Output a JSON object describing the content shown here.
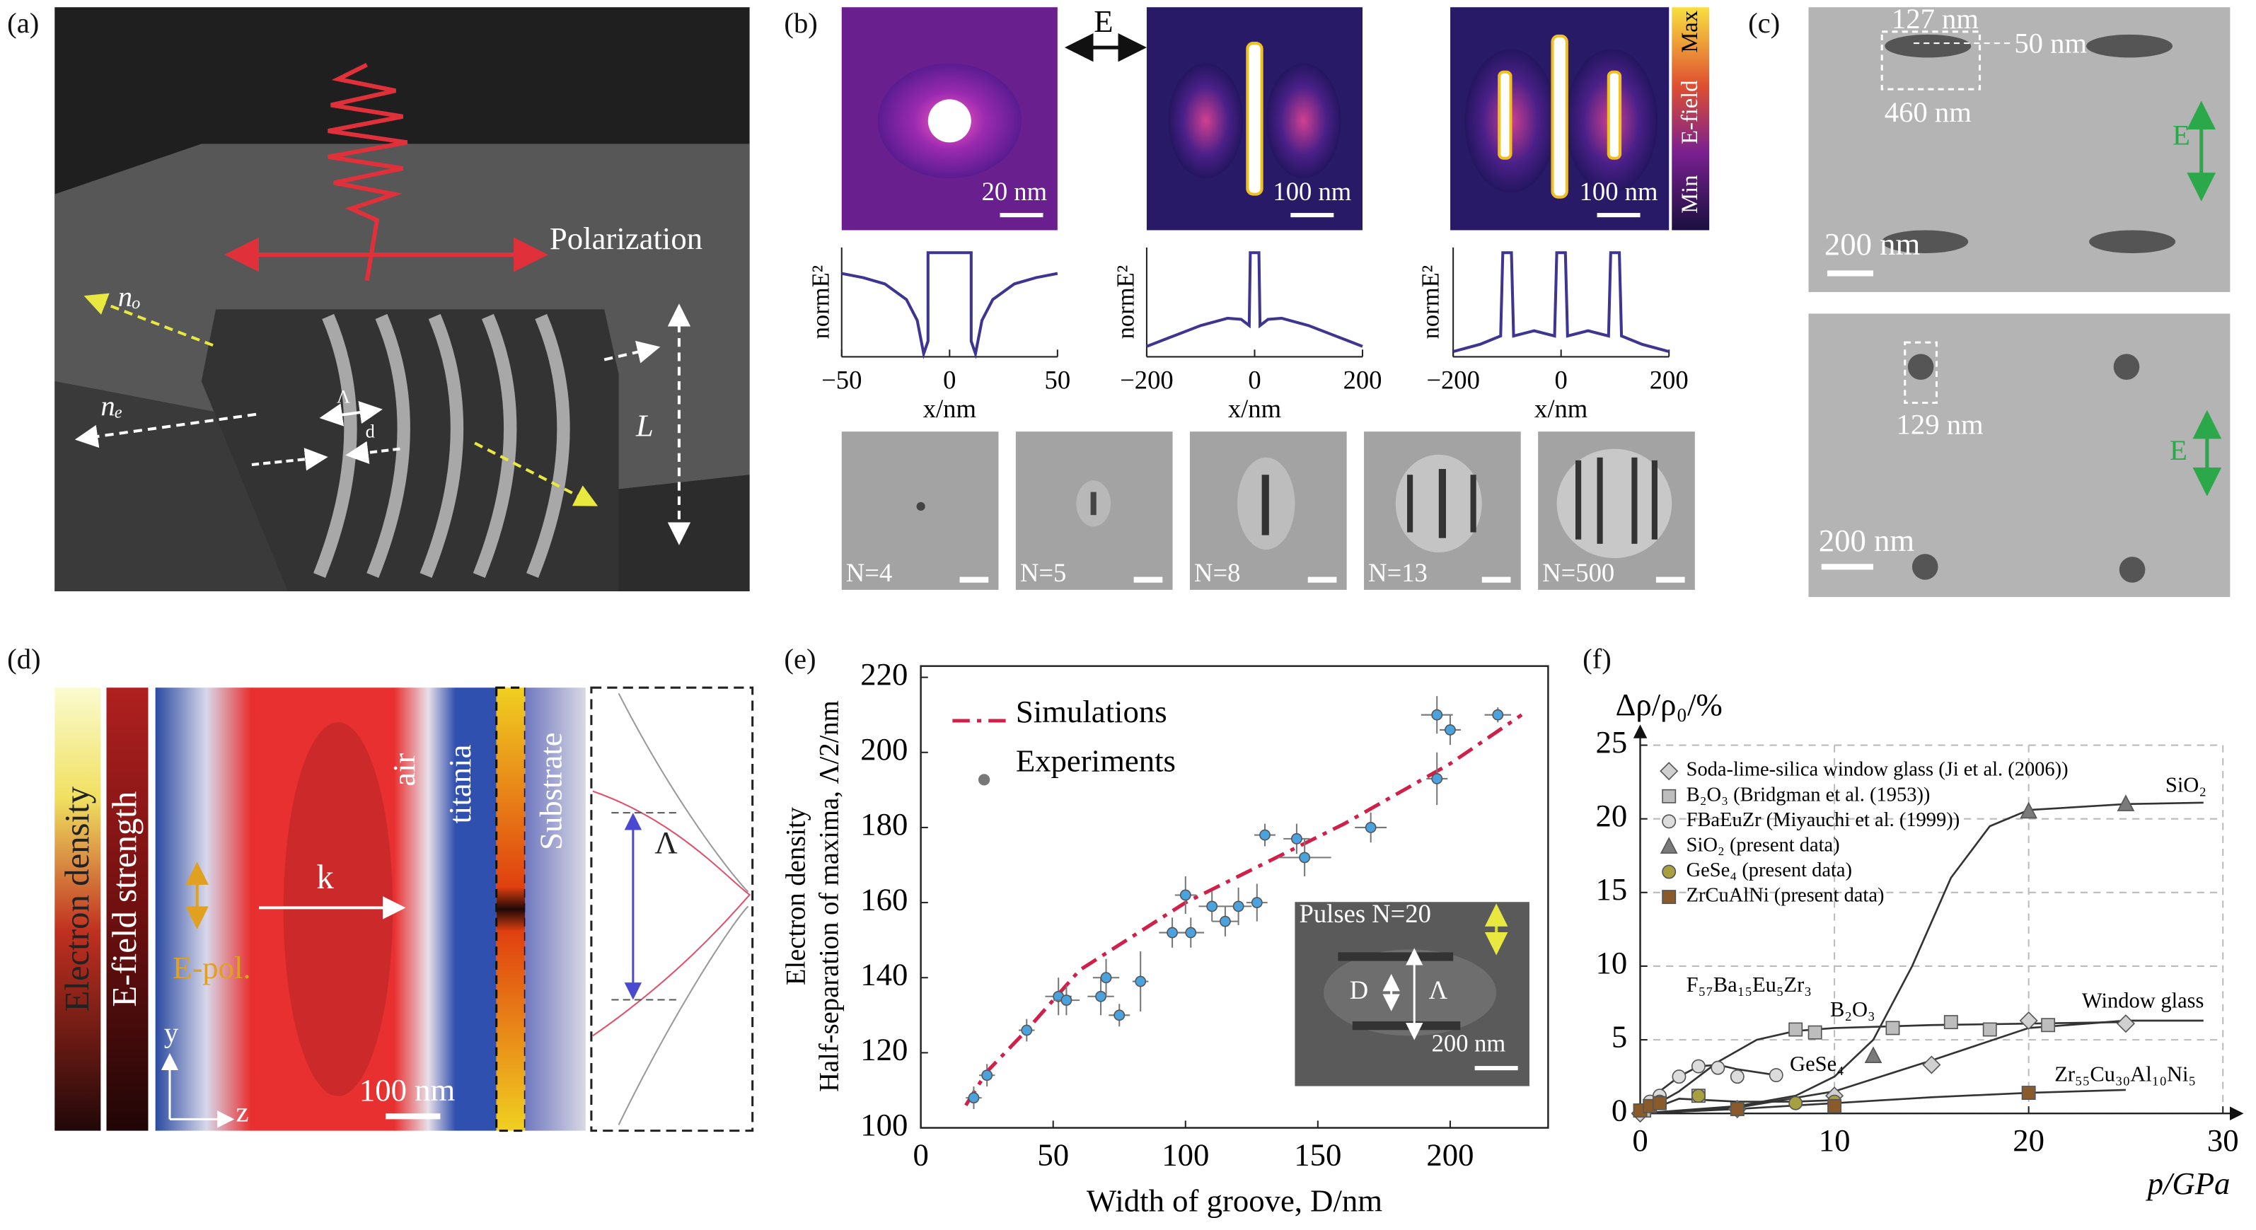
{
  "figure": {
    "a": {
      "label": "(a)",
      "polarization": "Polarization",
      "n_o": "nₒ",
      "n_e": "nₑ",
      "period": "Λ",
      "d": "d",
      "L": "L"
    },
    "b": {
      "label": "(b)",
      "E": "E",
      "scales": [
        "20 nm",
        "100 nm",
        "100 nm"
      ],
      "colorbar": [
        "Min",
        "E-field",
        "Max"
      ],
      "sem": [
        "N=4",
        "N=5",
        "N=8",
        "N=13",
        "N=500"
      ]
    },
    "c": {
      "label": "(c)",
      "top": {
        "width": "127 nm",
        "gap": "50 nm",
        "length": "460 nm",
        "E": "E",
        "scale": "200 nm"
      },
      "bottom": {
        "width": "129 nm",
        "E": "E",
        "scale": "200 nm"
      }
    },
    "d": {
      "label": "(d)",
      "electron_density": "Electron density",
      "efield": "E-field strength",
      "epol": "E-pol.",
      "k": "k",
      "air": "air",
      "titania": "titania",
      "substrate": "Substrate",
      "scale": "100 nm",
      "y": "y",
      "z": "z",
      "period": "Λ"
    },
    "e": {
      "label": "(e)",
      "inset": {
        "title": "Pulses N=20",
        "D": "D",
        "period": "Λ",
        "scale": "200 nm"
      }
    },
    "f": {
      "label": "(f)"
    }
  },
  "chart_data": [
    {
      "type": "line",
      "xlabel": "x/nm",
      "ylabel": "normE²",
      "x": [
        -50,
        -40,
        -30,
        -20,
        -15,
        -12,
        -10,
        -10,
        10,
        10,
        12,
        15,
        20,
        30,
        40,
        50
      ],
      "series": [
        {
          "color": "#3d3590",
          "values": [
            0.8,
            0.76,
            0.7,
            0.55,
            0.35,
            0.03,
            0.15,
            1,
            1,
            0.15,
            0.03,
            0.35,
            0.55,
            0.7,
            0.76,
            0.8
          ]
        }
      ],
      "xlim": [
        -50,
        50
      ],
      "xticks": [
        {
          "value": -50,
          "label": "−50"
        },
        0,
        50
      ],
      "ylim": [
        0,
        1.05
      ]
    },
    {
      "type": "line",
      "xlabel": "x/nm",
      "ylabel": "normE²",
      "x": [
        -200,
        -150,
        -100,
        -50,
        -25,
        -10,
        -8,
        8,
        10,
        25,
        50,
        100,
        150,
        200
      ],
      "series": [
        {
          "color": "#3d3590",
          "values": [
            0.1,
            0.2,
            0.3,
            0.37,
            0.36,
            0.3,
            1,
            1,
            0.3,
            0.36,
            0.37,
            0.3,
            0.2,
            0.1
          ]
        }
      ],
      "xlim": [
        -200,
        200
      ],
      "xticks": [
        {
          "value": -200,
          "label": "−200"
        },
        0,
        200
      ],
      "ylim": [
        0,
        1.05
      ]
    },
    {
      "type": "line",
      "xlabel": "x/nm",
      "ylabel": "normE²",
      "x": [
        -200,
        -150,
        -112,
        -108,
        -92,
        -88,
        -50,
        -12,
        -8,
        8,
        12,
        50,
        88,
        92,
        108,
        112,
        150,
        200
      ],
      "series": [
        {
          "color": "#3d3590",
          "values": [
            0.05,
            0.12,
            0.2,
            1,
            1,
            0.2,
            0.25,
            0.2,
            1,
            1,
            0.2,
            0.25,
            0.2,
            1,
            1,
            0.2,
            0.12,
            0.05
          ]
        }
      ],
      "xlim": [
        -200,
        200
      ],
      "xticks": [
        {
          "value": -200,
          "label": "−200"
        },
        0,
        200
      ],
      "ylim": [
        0,
        1.05
      ]
    },
    {
      "type": "scatter",
      "xlabel": "Width of groove, D/nm",
      "ylabel": [
        "Electron density",
        "Half-separation of maxima, Λ/2/nm"
      ],
      "xlim": [
        0,
        237
      ],
      "xticks": [
        0,
        50,
        100,
        150,
        200
      ],
      "ylim": [
        100,
        223
      ],
      "yticks": [
        100,
        120,
        140,
        160,
        180,
        200,
        220
      ],
      "series": [
        {
          "name": "Simulations",
          "type": "line",
          "dash": "dashdot",
          "color": "#d0204a",
          "x": [
            17,
            25,
            40,
            50,
            60,
            80,
            100,
            120,
            140,
            160,
            180,
            200,
            227
          ],
          "values": [
            106,
            115,
            126,
            134,
            142,
            151,
            160,
            167,
            174,
            181,
            189,
            197,
            210
          ]
        },
        {
          "name": "Experiments",
          "color": "#4aa3df",
          "x": [
            20,
            25,
            40,
            52,
            55,
            68,
            70,
            75,
            83,
            95,
            100,
            102,
            110,
            115,
            120,
            127,
            130,
            142,
            145,
            170,
            195,
            195,
            200,
            218
          ],
          "values": [
            108,
            114,
            126,
            135,
            134,
            135,
            140,
            130,
            139,
            152,
            162,
            152,
            159,
            155,
            159,
            160,
            178,
            177,
            172,
            180,
            193,
            210,
            206,
            210
          ],
          "yerr": [
            3,
            3,
            3,
            5,
            4,
            5,
            5,
            3,
            8,
            4,
            5,
            4,
            4,
            4,
            5,
            5,
            3,
            4,
            5,
            4,
            7,
            5,
            4,
            2
          ],
          "xerr": [
            3,
            3,
            3,
            5,
            5,
            5,
            5,
            4,
            3,
            5,
            4,
            5,
            5,
            5,
            5,
            4,
            4,
            5,
            10,
            6,
            4,
            6,
            4,
            5
          ]
        }
      ]
    },
    {
      "type": "scatter",
      "xlabel": "p/GPa",
      "ylabel": "Δρ/ρ₀/%",
      "xlim": [
        0,
        30
      ],
      "xticks": [
        0,
        10,
        20,
        30
      ],
      "ylim": [
        0,
        25
      ],
      "yticks": [
        0,
        5,
        10,
        15,
        20,
        25
      ],
      "grid": true,
      "series": [
        {
          "name": "Soda-lime-silica window glass (Ji et al. (2006))",
          "marker": "diamond",
          "color": "#d0d0d0",
          "x": [
            0,
            5,
            10,
            15,
            20,
            25
          ],
          "values": [
            0,
            0.3,
            1.2,
            3.3,
            6.3,
            6.1
          ]
        },
        {
          "name": "B₂O₃ (Bridgman et al. (1953))",
          "marker": "square",
          "color": "#bdbdbd",
          "x": [
            0.2,
            1,
            3,
            8,
            9,
            13,
            16,
            18,
            21
          ],
          "values": [
            0.2,
            0.8,
            1.2,
            5.7,
            5.5,
            5.8,
            6.2,
            5.7,
            6
          ]
        },
        {
          "name": "FBaEuZr (Miyauchi et al. (1999))",
          "marker": "circle",
          "color": "#dcdcdc",
          "x": [
            0.5,
            1,
            2,
            3,
            4,
            5,
            7
          ],
          "values": [
            0.8,
            1.2,
            2.5,
            3.2,
            3.1,
            2.5,
            2.6
          ]
        },
        {
          "name": "SiO₂ (present data)",
          "marker": "triangle",
          "color": "#7a7a7a",
          "x": [
            12,
            20,
            25
          ],
          "values": [
            3.9,
            20.5,
            21
          ]
        },
        {
          "name": "GeSe₄ (present data)",
          "marker": "circle",
          "color": "#a8a040",
          "x": [
            1,
            3,
            8,
            10
          ],
          "values": [
            0.8,
            1.2,
            0.7,
            0.8
          ]
        },
        {
          "name": "ZrCuAlNi (present data)",
          "marker": "square",
          "color": "#8b5a2b",
          "x": [
            0,
            0.5,
            1,
            5,
            10,
            20
          ],
          "values": [
            0.2,
            0.5,
            0.7,
            0.3,
            0.5,
            1.4
          ]
        }
      ],
      "curves": [
        {
          "label": "SiO₂",
          "x": [
            0,
            5,
            8,
            10,
            12,
            14,
            16,
            18,
            20,
            25,
            29
          ],
          "values": [
            0,
            0.5,
            1.2,
            2.5,
            5,
            10,
            16,
            19.5,
            20.6,
            21,
            21.1
          ]
        },
        {
          "label": "Window glass",
          "x": [
            0,
            5,
            10,
            15,
            20,
            25,
            29
          ],
          "values": [
            0,
            0.4,
            1.5,
            3.6,
            5.8,
            6.3,
            6.3
          ]
        },
        {
          "label": "B₂O₃",
          "x": [
            0,
            2,
            4,
            6,
            8,
            10,
            15,
            20,
            25
          ],
          "values": [
            0,
            1.5,
            3.5,
            5,
            5.6,
            5.8,
            6,
            6.1,
            6.2
          ]
        },
        {
          "label": "F₅₇Ba₁₅Eu₅Zr₃",
          "x": [
            0,
            1,
            2,
            3,
            4,
            5,
            7
          ],
          "values": [
            0,
            1.5,
            2.5,
            3.2,
            3.3,
            3,
            2.6
          ]
        },
        {
          "label": "GeSe₄",
          "x": [
            0,
            2,
            5,
            8,
            10
          ],
          "values": [
            0,
            1,
            0.8,
            0.8,
            0.9
          ]
        },
        {
          "label": "Zr₅₅Cu₃₀Al₁₀Ni₅",
          "x": [
            0,
            5,
            10,
            15,
            20,
            25
          ],
          "values": [
            0,
            0.3,
            0.7,
            1.1,
            1.4,
            1.6
          ]
        }
      ]
    }
  ]
}
